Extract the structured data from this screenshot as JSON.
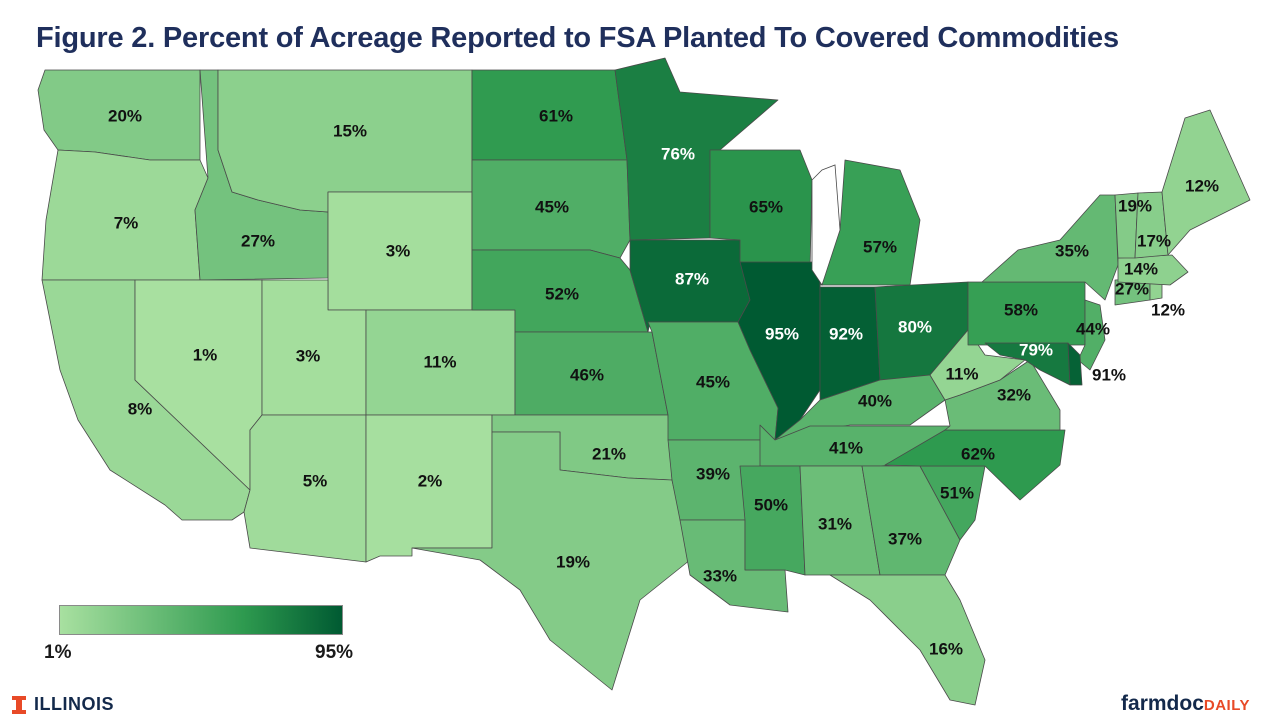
{
  "title": "Figure 2. Percent of Acreage Reported to FSA Planted To Covered Commodities",
  "legend": {
    "min_label": "1%",
    "max_label": "95%",
    "color_min": "#a8e0a0",
    "color_max": "#005a32"
  },
  "brand": {
    "left_name": "ILLINOIS",
    "left_color": "#e84a27",
    "right_part1": "farmdoc",
    "right_part2": "DAILY"
  },
  "states": [
    {
      "id": "WA",
      "label": "20%",
      "value": 20
    },
    {
      "id": "OR",
      "label": "7%",
      "value": 7
    },
    {
      "id": "CA",
      "label": "8%",
      "value": 8
    },
    {
      "id": "ID",
      "label": "27%",
      "value": 27
    },
    {
      "id": "NV",
      "label": "1%",
      "value": 1
    },
    {
      "id": "MT",
      "label": "15%",
      "value": 15
    },
    {
      "id": "WY",
      "label": "3%",
      "value": 3
    },
    {
      "id": "UT",
      "label": "3%",
      "value": 3
    },
    {
      "id": "AZ",
      "label": "5%",
      "value": 5
    },
    {
      "id": "CO",
      "label": "11%",
      "value": 11
    },
    {
      "id": "NM",
      "label": "2%",
      "value": 2
    },
    {
      "id": "ND",
      "label": "61%",
      "value": 61
    },
    {
      "id": "SD",
      "label": "45%",
      "value": 45
    },
    {
      "id": "NE",
      "label": "52%",
      "value": 52
    },
    {
      "id": "KS",
      "label": "46%",
      "value": 46
    },
    {
      "id": "OK",
      "label": "21%",
      "value": 21
    },
    {
      "id": "TX",
      "label": "19%",
      "value": 19
    },
    {
      "id": "MN",
      "label": "76%",
      "value": 76
    },
    {
      "id": "IA",
      "label": "87%",
      "value": 87
    },
    {
      "id": "MO",
      "label": "45%",
      "value": 45
    },
    {
      "id": "AR",
      "label": "39%",
      "value": 39
    },
    {
      "id": "LA",
      "label": "33%",
      "value": 33
    },
    {
      "id": "WI",
      "label": "65%",
      "value": 65
    },
    {
      "id": "IL",
      "label": "95%",
      "value": 95
    },
    {
      "id": "MI",
      "label": "57%",
      "value": 57
    },
    {
      "id": "IN",
      "label": "92%",
      "value": 92
    },
    {
      "id": "OH",
      "label": "80%",
      "value": 80
    },
    {
      "id": "KY",
      "label": "40%",
      "value": 40
    },
    {
      "id": "TN",
      "label": "41%",
      "value": 41
    },
    {
      "id": "MS",
      "label": "50%",
      "value": 50
    },
    {
      "id": "AL",
      "label": "31%",
      "value": 31
    },
    {
      "id": "GA",
      "label": "37%",
      "value": 37
    },
    {
      "id": "FL",
      "label": "16%",
      "value": 16
    },
    {
      "id": "SC",
      "label": "51%",
      "value": 51
    },
    {
      "id": "NC",
      "label": "62%",
      "value": 62
    },
    {
      "id": "VA",
      "label": "32%",
      "value": 32
    },
    {
      "id": "WV",
      "label": "11%",
      "value": 11
    },
    {
      "id": "PA",
      "label": "58%",
      "value": 58
    },
    {
      "id": "NY",
      "label": "35%",
      "value": 35
    },
    {
      "id": "NJ",
      "label": "44%",
      "value": 44
    },
    {
      "id": "MD",
      "label": "79%",
      "value": 79
    },
    {
      "id": "DE",
      "label": "91%",
      "value": 91
    },
    {
      "id": "CT",
      "label": "27%",
      "value": 27
    },
    {
      "id": "RI",
      "label": "12%",
      "value": 12
    },
    {
      "id": "MA",
      "label": "14%",
      "value": 14
    },
    {
      "id": "VT",
      "label": "19%",
      "value": 19
    },
    {
      "id": "NH",
      "label": "17%",
      "value": 17
    },
    {
      "id": "ME",
      "label": "12%",
      "value": 12
    }
  ]
}
